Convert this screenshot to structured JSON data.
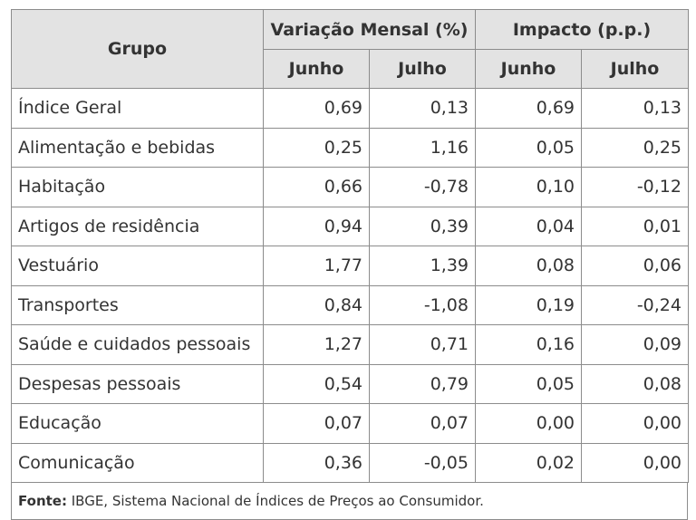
{
  "chart_data": {
    "type": "table",
    "header": {
      "group": "Grupo",
      "variation": "Variação Mensal (%)",
      "impact": "Impacto (p.p.)",
      "months": [
        "Junho",
        "Julho",
        "Junho",
        "Julho"
      ]
    },
    "rows": [
      {
        "group": "Índice Geral",
        "values": [
          "0,69",
          "0,13",
          "0,69",
          "0,13"
        ]
      },
      {
        "group": "Alimentação e bebidas",
        "values": [
          "0,25",
          "1,16",
          "0,05",
          "0,25"
        ]
      },
      {
        "group": "Habitação",
        "values": [
          "0,66",
          "-0,78",
          "0,10",
          "-0,12"
        ]
      },
      {
        "group": "Artigos de residência",
        "values": [
          "0,94",
          "0,39",
          "0,04",
          "0,01"
        ]
      },
      {
        "group": "Vestuário",
        "values": [
          "1,77",
          "1,39",
          "0,08",
          "0,06"
        ]
      },
      {
        "group": "Transportes",
        "values": [
          "0,84",
          "-1,08",
          "0,19",
          "-0,24"
        ]
      },
      {
        "group": "Saúde e cuidados pessoais",
        "values": [
          "1,27",
          "0,71",
          "0,16",
          "0,09"
        ]
      },
      {
        "group": "Despesas pessoais",
        "values": [
          "0,54",
          "0,79",
          "0,05",
          "0,08"
        ]
      },
      {
        "group": "Educação",
        "values": [
          "0,07",
          "0,07",
          "0,00",
          "0,00"
        ]
      },
      {
        "group": "Comunicação",
        "values": [
          "0,36",
          "-0,05",
          "0,02",
          "0,00"
        ]
      }
    ],
    "source_label": "Fonte:",
    "source_text": "IBGE, Sistema Nacional de Índices de Preços ao Consumidor."
  }
}
